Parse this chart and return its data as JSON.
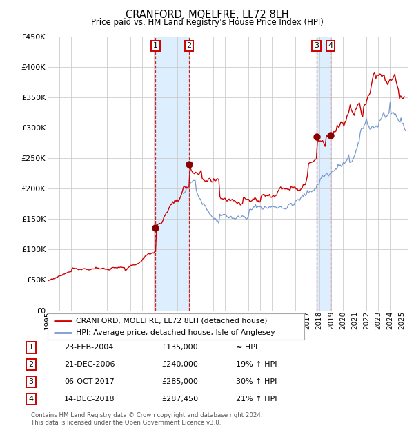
{
  "title": "CRANFORD, MOELFRE, LL72 8LH",
  "subtitle": "Price paid vs. HM Land Registry's House Price Index (HPI)",
  "footer_line1": "Contains HM Land Registry data © Crown copyright and database right 2024.",
  "footer_line2": "This data is licensed under the Open Government Licence v3.0.",
  "legend_red": "CRANFORD, MOELFRE, LL72 8LH (detached house)",
  "legend_blue": "HPI: Average price, detached house, Isle of Anglesey",
  "transactions": [
    {
      "num": 1,
      "date": "23-FEB-2004",
      "date_float": 2004.14,
      "price": 135000,
      "label": "≈ HPI"
    },
    {
      "num": 2,
      "date": "21-DEC-2006",
      "date_float": 2006.97,
      "price": 240000,
      "label": "19% ↑ HPI"
    },
    {
      "num": 3,
      "date": "06-OCT-2017",
      "date_float": 2017.76,
      "price": 285000,
      "label": "30% ↑ HPI"
    },
    {
      "num": 4,
      "date": "14-DEC-2018",
      "date_float": 2018.95,
      "price": 287450,
      "label": "21% ↑ HPI"
    }
  ],
  "xmin": 1995.0,
  "xmax": 2025.5,
  "ymin": 0,
  "ymax": 450000,
  "yticks": [
    0,
    50000,
    100000,
    150000,
    200000,
    250000,
    300000,
    350000,
    400000,
    450000
  ],
  "ytick_labels": [
    "£0",
    "£50K",
    "£100K",
    "£150K",
    "£200K",
    "£250K",
    "£300K",
    "£350K",
    "£400K",
    "£450K"
  ],
  "xtick_years": [
    1995,
    1996,
    1997,
    1998,
    1999,
    2000,
    2001,
    2002,
    2003,
    2004,
    2005,
    2006,
    2007,
    2008,
    2009,
    2010,
    2011,
    2012,
    2013,
    2014,
    2015,
    2016,
    2017,
    2018,
    2019,
    2020,
    2021,
    2022,
    2023,
    2024,
    2025
  ],
  "red_color": "#cc0000",
  "blue_color": "#7799cc",
  "background_color": "#ffffff",
  "plot_bg_color": "#ffffff",
  "grid_color": "#cccccc",
  "shade_color": "#ddeeff",
  "dot_color": "#880000"
}
